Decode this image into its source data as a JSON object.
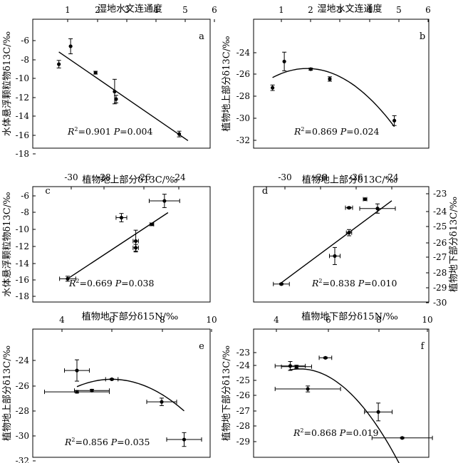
{
  "chart_data": [
    {
      "panel": "a",
      "type": "scatter",
      "panel_label": "a",
      "top_axis_label": "湿地水文连通度",
      "y_label": "水体悬浮颗粒物δ13C/‰",
      "x_ticks": [
        "1",
        "2",
        "3",
        "4",
        "5",
        "6"
      ],
      "y_ticks": [
        "-6",
        "-8",
        "-10",
        "-12",
        "-14",
        "-16",
        "-18"
      ],
      "xlim": [
        0.6,
        6.0
      ],
      "ylim": [
        -18,
        -4.6
      ],
      "points": [
        {
          "x": 0.7,
          "y": -8.5,
          "yerr": 0.4
        },
        {
          "x": 1.1,
          "y": -6.6,
          "yerr": 0.8
        },
        {
          "x": 1.95,
          "y": -9.4,
          "yerr": 0.15
        },
        {
          "x": 2.6,
          "y": -11.4,
          "yerr": 1.3
        },
        {
          "x": 2.65,
          "y": -12.2,
          "yerr": 0.4
        },
        {
          "x": 4.8,
          "y": -15.9,
          "yerr": 0.3
        }
      ],
      "fit": {
        "kind": "linear",
        "x": [
          0.7,
          5.1
        ],
        "y": [
          -7.2,
          -16.6
        ]
      },
      "stats": {
        "r2_prefix": "R",
        "r2_sup": "2",
        "r2_value": "=0.901",
        "p_prefix": "P",
        "p_value": "=0.004"
      }
    },
    {
      "panel": "b",
      "type": "scatter",
      "panel_label": "b",
      "top_axis_label": "湿地水文连通度",
      "y_label": "植物地上部分δ13C/‰",
      "x_ticks": [
        "1",
        "2",
        "3",
        "4",
        "5",
        "6"
      ],
      "y_ticks": [
        "-24",
        "-26",
        "-28",
        "-30",
        "-32"
      ],
      "xlim": [
        0.6,
        6.0
      ],
      "ylim": [
        -32,
        -22.6
      ],
      "points": [
        {
          "x": 0.7,
          "y": -27.2,
          "yerr": 0.25
        },
        {
          "x": 1.1,
          "y": -24.8,
          "yerr": 0.85
        },
        {
          "x": 2.0,
          "y": -25.5,
          "yerr": 0.1
        },
        {
          "x": 2.65,
          "y": -26.4,
          "yerr": 0.2
        },
        {
          "x": 4.85,
          "y": -30.2,
          "yerr": 0.45
        }
      ],
      "fit": {
        "kind": "quadratic",
        "a": -0.6,
        "b": 2.25,
        "c": -27.55,
        "x_range": [
          0.7,
          4.85
        ]
      },
      "stats": {
        "r2_prefix": "R",
        "r2_sup": "2",
        "r2_value": "=0.869",
        "p_prefix": "P",
        "p_value": "=0.024"
      }
    },
    {
      "panel": "c",
      "type": "scatter",
      "panel_label": "c",
      "top_axis_label": "植物地上部分δ13C/‰",
      "y_label": "水体悬浮颗粒物δ13C/‰",
      "x_ticks": [
        "-30",
        "-28",
        "-26",
        "-24"
      ],
      "y_ticks": [
        "-6",
        "-8",
        "-10",
        "-12",
        "-14",
        "-16",
        "-18"
      ],
      "xlim": [
        -31.5,
        -22.5
      ],
      "ylim": [
        -18,
        -4.6
      ],
      "points": [
        {
          "x": -30.2,
          "y": -15.9,
          "xerr": 0.45,
          "yerr": 0.3
        },
        {
          "x": -27.2,
          "y": -8.6,
          "xerr": 0.3,
          "yerr": 0.5
        },
        {
          "x": -26.4,
          "y": -11.4,
          "xerr": 0.15,
          "yerr": 1.3
        },
        {
          "x": -26.4,
          "y": -12.2,
          "xerr": 0.15,
          "yerr": 0.4
        },
        {
          "x": -25.5,
          "y": -9.4,
          "xerr": 0.1,
          "yerr": 0.1
        },
        {
          "x": -24.8,
          "y": -6.6,
          "xerr": 0.85,
          "yerr": 0.8
        }
      ],
      "fit": {
        "kind": "linear",
        "x": [
          -30.2,
          -24.6
        ],
        "y": [
          -15.9,
          -8.0
        ]
      },
      "stats": {
        "r2_prefix": "R",
        "r2_sup": "2",
        "r2_value": "=0.669",
        "p_prefix": "P",
        "p_value": "=0.038"
      }
    },
    {
      "panel": "d",
      "type": "scatter",
      "panel_label": "d",
      "top_axis_label": "植物地上部分δ13C/‰",
      "y_label": "植物地下部分δ13C/‰",
      "x_ticks": [
        "-30",
        "-28",
        "-26",
        "-24"
      ],
      "y_ticks": [
        "-23",
        "-24",
        "-25",
        "-26",
        "-27",
        "-28",
        "-29",
        "-30"
      ],
      "xlim": [
        -31.5,
        -22.5
      ],
      "ylim": [
        -30,
        -22.5
      ],
      "points": [
        {
          "x": -30.2,
          "y": -28.8,
          "xerr": 0.45,
          "yerr": 0.05
        },
        {
          "x": -27.2,
          "y": -27.0,
          "xerr": 0.3,
          "yerr": 0.55
        },
        {
          "x": -26.4,
          "y": -25.5,
          "xerr": 0.15,
          "yerr": 0.2
        },
        {
          "x": -26.4,
          "y": -23.9,
          "xerr": 0.2,
          "yerr": 0.05
        },
        {
          "x": -25.5,
          "y": -23.35,
          "xerr": 0.1,
          "yerr": 0.05
        },
        {
          "x": -24.8,
          "y": -23.95,
          "xerr": 1.0,
          "yerr": 0.3
        }
      ],
      "fit": {
        "kind": "linear",
        "x": [
          -30.3,
          -24.0
        ],
        "y": [
          -28.8,
          -23.45
        ]
      },
      "stats": {
        "r2_prefix": "R",
        "r2_sup": "2",
        "r2_value": "=0.838",
        "p_prefix": "P",
        "p_value": "=0.010"
      }
    },
    {
      "panel": "e",
      "type": "scatter",
      "panel_label": "e",
      "top_axis_label": "植物地下部分δ15N/‰",
      "y_label": "植物地上部分δ13C/‰",
      "x_ticks": [
        "4",
        "6",
        "8",
        "10"
      ],
      "y_ticks": [
        "-24",
        "-26",
        "-28",
        "-30",
        "-32"
      ],
      "xlim": [
        2.6,
        10.0
      ],
      "ylim": [
        -32,
        -22.6
      ],
      "points": [
        {
          "x": 4.6,
          "y": -24.8,
          "xerr": 0.5,
          "yerr": 0.85
        },
        {
          "x": 4.6,
          "y": -26.5,
          "xerr": 1.3,
          "yerr": 0.1
        },
        {
          "x": 5.2,
          "y": -26.4,
          "xerr": 0.7,
          "yerr": 0.1
        },
        {
          "x": 6.0,
          "y": -25.5,
          "xerr": 0.25,
          "yerr": 0.05
        },
        {
          "x": 8.0,
          "y": -27.3,
          "xerr": 0.6,
          "yerr": 0.3
        },
        {
          "x": 8.9,
          "y": -30.3,
          "xerr": 0.7,
          "yerr": 0.55
        }
      ],
      "fit": {
        "kind": "quadratic",
        "a": -0.3,
        "b": 3.6,
        "c": -36.3,
        "x_range": [
          4.6,
          8.9
        ]
      },
      "stats": {
        "r2_prefix": "R",
        "r2_sup": "2",
        "r2_value": "=0.856",
        "p_prefix": "P",
        "p_value": "=0.035"
      }
    },
    {
      "panel": "f",
      "type": "scatter",
      "panel_label": "f",
      "top_axis_label": "植物地下部分δ15N/‰",
      "y_label": "植物地下部分δ13C/‰",
      "x_ticks": [
        "4",
        "6",
        "8",
        "10"
      ],
      "y_ticks": [
        "-23",
        "-24",
        "-25",
        "-26",
        "-27",
        "-28",
        "-29"
      ],
      "xlim": [
        2.6,
        10.0
      ],
      "ylim": [
        -29.4,
        -22.4
      ],
      "points": [
        {
          "x": 4.55,
          "y": -23.9,
          "xerr": 0.6,
          "yerr": 0.3
        },
        {
          "x": 4.8,
          "y": -23.95,
          "xerr": 0.6,
          "yerr": 0.1
        },
        {
          "x": 5.25,
          "y": -25.45,
          "xerr": 1.3,
          "yerr": 0.2
        },
        {
          "x": 5.95,
          "y": -23.35,
          "xerr": 0.25,
          "yerr": 0.05
        },
        {
          "x": 8.05,
          "y": -27.0,
          "xerr": 0.55,
          "yerr": 0.6
        },
        {
          "x": 9.0,
          "y": -28.75,
          "xerr": 1.2,
          "yerr": 0.05
        }
      ],
      "fit": {
        "kind": "quadratic",
        "a": -0.41,
        "b": 4.05,
        "c": -34.1,
        "x_range": [
          4.5,
          9.0
        ]
      },
      "stats": {
        "r2_prefix": "R",
        "r2_sup": "2",
        "r2_value": "=0.868",
        "p_prefix": "P",
        "p_value": "=0.019"
      }
    }
  ]
}
